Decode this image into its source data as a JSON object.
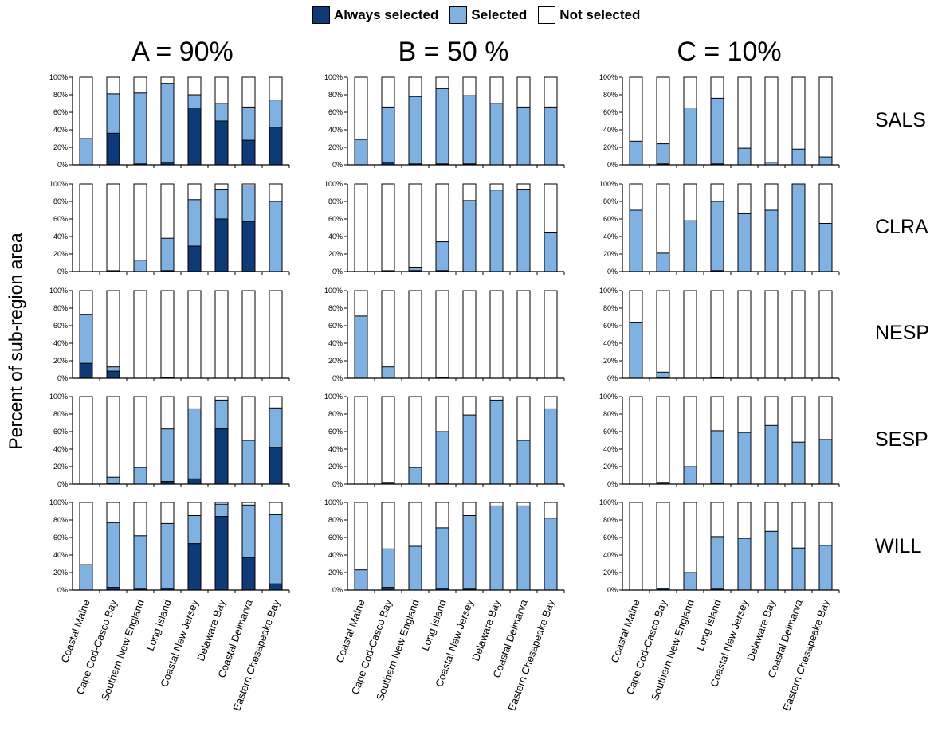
{
  "legend": {
    "items": [
      {
        "label": "Always selected",
        "color": "#0f3a78"
      },
      {
        "label": "Selected",
        "color": "#7fb2e3"
      },
      {
        "label": "Not selected",
        "color": "#ffffff"
      }
    ]
  },
  "y_axis_label": "Percent of sub-region area",
  "columns": [
    "A = 90%",
    "B = 50 %",
    "C = 10%"
  ],
  "rows": [
    "SALS",
    "CLRA",
    "NESP",
    "SESP",
    "WILL"
  ],
  "chart_data": {
    "type": "bar",
    "stacked": true,
    "ylim": [
      0,
      100
    ],
    "yticks": [
      "0%",
      "20%",
      "40%",
      "60%",
      "80%",
      "100%"
    ],
    "categories": [
      "Coastal Maine",
      "Cape Cod-Casco Bay",
      "Southern New England",
      "Long Island",
      "Coastal New Jersey",
      "Delaware Bay",
      "Coastal Delmarva",
      "Eastern Chesapeake Bay"
    ],
    "series_names": [
      "Always selected",
      "Selected",
      "Not selected"
    ],
    "panels": [
      {
        "row": "SALS",
        "column": "A = 90%",
        "always_selected": [
          0,
          36,
          1,
          3,
          65,
          50,
          28,
          43
        ],
        "selected": [
          30,
          45,
          81,
          90,
          15,
          20,
          38,
          31
        ]
      },
      {
        "row": "SALS",
        "column": "B = 50 %",
        "always_selected": [
          0,
          3,
          1,
          1,
          1,
          0,
          0,
          0
        ],
        "selected": [
          29,
          63,
          77,
          86,
          78,
          70,
          66,
          66
        ]
      },
      {
        "row": "SALS",
        "column": "C = 10%",
        "always_selected": [
          0,
          1,
          0,
          1,
          0,
          0,
          0,
          0
        ],
        "selected": [
          27,
          23,
          65,
          75,
          19,
          3,
          18,
          9
        ]
      },
      {
        "row": "CLRA",
        "column": "A = 90%",
        "always_selected": [
          0,
          0,
          0,
          1,
          29,
          60,
          57,
          0
        ],
        "selected": [
          0,
          1,
          13,
          37,
          53,
          34,
          41,
          80
        ]
      },
      {
        "row": "CLRA",
        "column": "B = 50 %",
        "always_selected": [
          0,
          0,
          1,
          1,
          0,
          0,
          0,
          0
        ],
        "selected": [
          0,
          1,
          4,
          33,
          81,
          93,
          94,
          45
        ]
      },
      {
        "row": "CLRA",
        "column": "C = 10%",
        "always_selected": [
          0,
          0,
          0,
          1,
          0,
          0,
          0,
          0
        ],
        "selected": [
          70,
          21,
          58,
          79,
          66,
          70,
          100,
          55
        ]
      },
      {
        "row": "NESP",
        "column": "A = 90%",
        "always_selected": [
          17,
          8,
          0,
          1,
          0,
          0,
          0,
          0
        ],
        "selected": [
          56,
          5,
          0,
          0,
          0,
          0,
          0,
          0
        ]
      },
      {
        "row": "NESP",
        "column": "B = 50 %",
        "always_selected": [
          0,
          0,
          0,
          1,
          0,
          0,
          0,
          0
        ],
        "selected": [
          71,
          13,
          0,
          0,
          0,
          0,
          0,
          0
        ]
      },
      {
        "row": "NESP",
        "column": "C = 10%",
        "always_selected": [
          0,
          1,
          0,
          1,
          0,
          0,
          0,
          0
        ],
        "selected": [
          64,
          6,
          0,
          0,
          0,
          0,
          0,
          0
        ]
      },
      {
        "row": "SESP",
        "column": "A = 90%",
        "always_selected": [
          0,
          1,
          0,
          3,
          6,
          63,
          0,
          42
        ],
        "selected": [
          0,
          7,
          19,
          60,
          80,
          33,
          50,
          45
        ]
      },
      {
        "row": "SESP",
        "column": "B = 50 %",
        "always_selected": [
          0,
          2,
          0,
          1,
          0,
          0,
          0,
          0
        ],
        "selected": [
          0,
          0,
          19,
          59,
          79,
          96,
          50,
          86
        ]
      },
      {
        "row": "SESP",
        "column": "C = 10%",
        "always_selected": [
          0,
          2,
          0,
          1,
          0,
          0,
          0,
          0
        ],
        "selected": [
          0,
          0,
          20,
          60,
          59,
          67,
          48,
          51
        ]
      },
      {
        "row": "WILL",
        "column": "A = 90%",
        "always_selected": [
          0,
          3,
          1,
          2,
          53,
          84,
          37,
          7
        ],
        "selected": [
          29,
          74,
          61,
          74,
          32,
          14,
          60,
          79
        ]
      },
      {
        "row": "WILL",
        "column": "B = 50 %",
        "always_selected": [
          0,
          3,
          0,
          2,
          1,
          0,
          0,
          0
        ],
        "selected": [
          23,
          44,
          50,
          69,
          84,
          96,
          96,
          82
        ]
      },
      {
        "row": "WILL",
        "column": "C = 10%",
        "always_selected": [
          0,
          2,
          0,
          1,
          0,
          0,
          0,
          0
        ],
        "selected": [
          0,
          0,
          20,
          60,
          59,
          67,
          48,
          51
        ]
      }
    ]
  }
}
